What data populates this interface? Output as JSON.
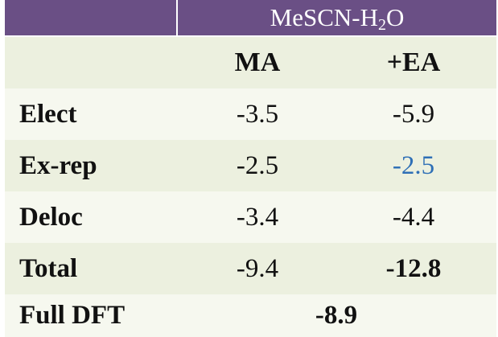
{
  "table": {
    "title_main": "MeSCN-H",
    "title_sub": "2",
    "title_tail": "O",
    "columns": [
      "MA",
      "+EA"
    ],
    "rows": [
      {
        "label": "Elect",
        "ma": "-3.5",
        "ea": "-5.9"
      },
      {
        "label": "Ex-rep",
        "ma": "-2.5",
        "ea": "-2.5"
      },
      {
        "label": "Deloc",
        "ma": "-3.4",
        "ea": "-4.4"
      },
      {
        "label": "Total",
        "ma": "-9.4",
        "ea": "-12.8"
      }
    ],
    "full_dft": {
      "label": "Full DFT",
      "value": "-8.9"
    }
  },
  "colors": {
    "header_bg": "#6a4f85",
    "band_light": "#ecf0df",
    "band_pale": "#f6f8ef",
    "highlight_value": "#2e6fb6"
  }
}
